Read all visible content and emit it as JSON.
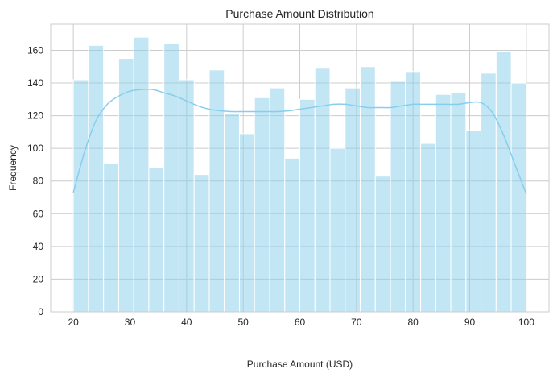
{
  "chart_data": {
    "type": "bar",
    "subtype": "histogram",
    "title": "Purchase Amount Distribution",
    "xlabel": "Purchase Amount (USD)",
    "ylabel": "Frequency",
    "xlim": [
      16,
      104
    ],
    "ylim": [
      0,
      176
    ],
    "xticks": [
      20,
      30,
      40,
      50,
      60,
      70,
      80,
      90,
      100
    ],
    "yticks": [
      0,
      20,
      40,
      60,
      80,
      100,
      120,
      140,
      160
    ],
    "grid": true,
    "bar_color": "#87ceeb",
    "kde_color": "#87ceeb",
    "bins": {
      "start": 20,
      "end": 100,
      "count": 30
    },
    "values": [
      142,
      163,
      91,
      155,
      168,
      88,
      164,
      142,
      84,
      148,
      121,
      109,
      131,
      137,
      94,
      130,
      149,
      100,
      137,
      150,
      83,
      141,
      147,
      103,
      133,
      134,
      111,
      146,
      159,
      140
    ],
    "kde": {
      "x": [
        20,
        22,
        24,
        26,
        28,
        30,
        32,
        34,
        36,
        38,
        40,
        42,
        44,
        46,
        48,
        50,
        52,
        54,
        56,
        58,
        60,
        62,
        64,
        66,
        68,
        70,
        72,
        74,
        76,
        78,
        80,
        82,
        84,
        86,
        88,
        90,
        92,
        94,
        96,
        98,
        100
      ],
      "y": [
        73,
        98,
        117,
        127,
        132,
        135,
        136,
        136,
        134,
        132,
        129,
        126,
        124,
        123,
        122.5,
        122.5,
        122.5,
        122.5,
        122.5,
        123,
        124,
        125,
        126,
        127,
        127,
        126,
        125,
        125,
        125,
        126,
        127,
        127,
        127,
        127,
        127,
        128,
        128,
        122,
        108,
        90,
        72
      ]
    }
  }
}
